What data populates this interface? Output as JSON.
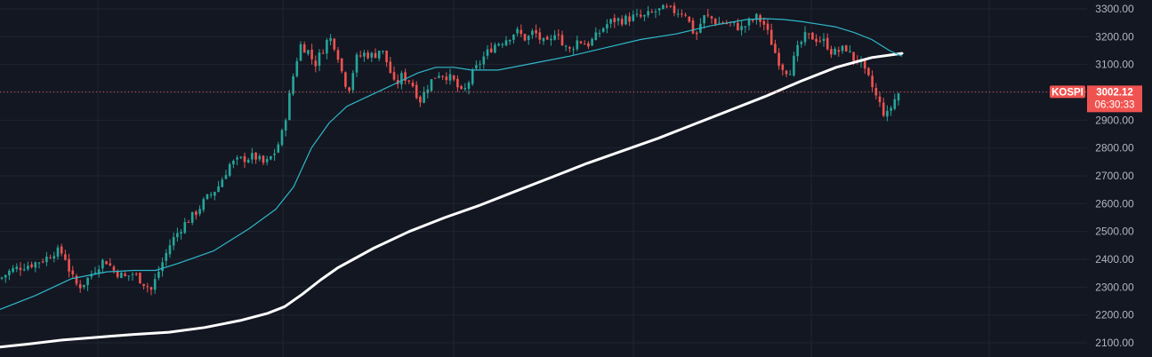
{
  "chart_data": {
    "type": "candlestick",
    "symbol": "KOSPI",
    "last_price": "3002.12",
    "countdown": "06:30:33",
    "ylim": [
      2070,
      3325
    ],
    "y_ticks": [
      "2100.00",
      "2200.00",
      "2300.00",
      "2400.00",
      "2500.00",
      "2600.00",
      "2700.00",
      "2800.00",
      "2900.00",
      "3000.00",
      "3100.00",
      "3200.00",
      "3300.00"
    ],
    "grid": true,
    "colors": {
      "background": "#131722",
      "up": "#26a69a",
      "down": "#ef5350",
      "ma_short": "#2fb8c8",
      "ma_long": "#ffffff",
      "last_price_tag": "#ef5350",
      "grid": "#1f2430",
      "tick_text": "#b2b5be"
    },
    "anchors": [
      [
        0,
        2330
      ],
      [
        12,
        2360
      ],
      [
        25,
        2375
      ],
      [
        38,
        2385
      ],
      [
        52,
        2405
      ],
      [
        62,
        2430
      ],
      [
        72,
        2420
      ],
      [
        80,
        2340
      ],
      [
        88,
        2300
      ],
      [
        96,
        2320
      ],
      [
        108,
        2370
      ],
      [
        118,
        2400
      ],
      [
        128,
        2360
      ],
      [
        140,
        2335
      ],
      [
        150,
        2350
      ],
      [
        160,
        2320
      ],
      [
        170,
        2290
      ],
      [
        180,
        2370
      ],
      [
        192,
        2460
      ],
      [
        205,
        2520
      ],
      [
        218,
        2560
      ],
      [
        230,
        2610
      ],
      [
        245,
        2660
      ],
      [
        258,
        2740
      ],
      [
        272,
        2760
      ],
      [
        286,
        2770
      ],
      [
        298,
        2740
      ],
      [
        310,
        2790
      ],
      [
        318,
        2860
      ],
      [
        325,
        2980
      ],
      [
        332,
        3100
      ],
      [
        338,
        3170
      ],
      [
        346,
        3150
      ],
      [
        354,
        3100
      ],
      [
        362,
        3150
      ],
      [
        370,
        3200
      ],
      [
        378,
        3160
      ],
      [
        386,
        3050
      ],
      [
        392,
        3010
      ],
      [
        400,
        3120
      ],
      [
        410,
        3140
      ],
      [
        420,
        3130
      ],
      [
        428,
        3160
      ],
      [
        436,
        3100
      ],
      [
        444,
        3020
      ],
      [
        452,
        3060
      ],
      [
        462,
        3040
      ],
      [
        472,
        2970
      ],
      [
        482,
        3030
      ],
      [
        492,
        3070
      ],
      [
        502,
        3060
      ],
      [
        510,
        3040
      ],
      [
        520,
        2990
      ],
      [
        530,
        3060
      ],
      [
        542,
        3120
      ],
      [
        555,
        3170
      ],
      [
        568,
        3190
      ],
      [
        580,
        3220
      ],
      [
        592,
        3190
      ],
      [
        600,
        3220
      ],
      [
        610,
        3180
      ],
      [
        618,
        3170
      ],
      [
        626,
        3240
      ],
      [
        632,
        3170
      ],
      [
        640,
        3150
      ],
      [
        650,
        3190
      ],
      [
        660,
        3170
      ],
      [
        670,
        3200
      ],
      [
        680,
        3240
      ],
      [
        690,
        3260
      ],
      [
        700,
        3260
      ],
      [
        712,
        3270
      ],
      [
        724,
        3270
      ],
      [
        736,
        3290
      ],
      [
        748,
        3300
      ],
      [
        760,
        3290
      ],
      [
        770,
        3290
      ],
      [
        776,
        3240
      ],
      [
        782,
        3200
      ],
      [
        790,
        3270
      ],
      [
        798,
        3270
      ],
      [
        806,
        3250
      ],
      [
        816,
        3250
      ],
      [
        826,
        3240
      ],
      [
        834,
        3230
      ],
      [
        842,
        3250
      ],
      [
        850,
        3270
      ],
      [
        858,
        3250
      ],
      [
        866,
        3190
      ],
      [
        874,
        3120
      ],
      [
        882,
        3080
      ],
      [
        888,
        3080
      ],
      [
        896,
        3150
      ],
      [
        904,
        3200
      ],
      [
        912,
        3200
      ],
      [
        920,
        3190
      ],
      [
        928,
        3180
      ],
      [
        936,
        3140
      ],
      [
        944,
        3150
      ],
      [
        952,
        3160
      ],
      [
        958,
        3120
      ],
      [
        966,
        3120
      ],
      [
        972,
        3070
      ],
      [
        978,
        3040
      ],
      [
        984,
        2990
      ],
      [
        990,
        2950
      ],
      [
        996,
        2910
      ],
      [
        1002,
        2950
      ],
      [
        1008,
        2990
      ],
      [
        1014,
        3010
      ]
    ],
    "ma_short": [
      [
        0,
        2220
      ],
      [
        40,
        2270
      ],
      [
        80,
        2330
      ],
      [
        120,
        2355
      ],
      [
        150,
        2360
      ],
      [
        175,
        2360
      ],
      [
        200,
        2385
      ],
      [
        240,
        2430
      ],
      [
        280,
        2510
      ],
      [
        310,
        2580
      ],
      [
        330,
        2660
      ],
      [
        350,
        2800
      ],
      [
        370,
        2890
      ],
      [
        390,
        2950
      ],
      [
        410,
        2980
      ],
      [
        430,
        3010
      ],
      [
        450,
        3040
      ],
      [
        470,
        3070
      ],
      [
        490,
        3090
      ],
      [
        510,
        3090
      ],
      [
        530,
        3080
      ],
      [
        560,
        3080
      ],
      [
        600,
        3105
      ],
      [
        640,
        3130
      ],
      [
        680,
        3160
      ],
      [
        720,
        3190
      ],
      [
        760,
        3210
      ],
      [
        800,
        3240
      ],
      [
        840,
        3262
      ],
      [
        860,
        3265
      ],
      [
        880,
        3262
      ],
      [
        900,
        3255
      ],
      [
        920,
        3245
      ],
      [
        940,
        3235
      ],
      [
        960,
        3215
      ],
      [
        980,
        3190
      ],
      [
        1000,
        3150
      ],
      [
        1014,
        3130
      ]
    ],
    "ma_long": [
      [
        0,
        2085
      ],
      [
        30,
        2095
      ],
      [
        70,
        2110
      ],
      [
        110,
        2120
      ],
      [
        150,
        2130
      ],
      [
        190,
        2138
      ],
      [
        230,
        2155
      ],
      [
        270,
        2180
      ],
      [
        300,
        2205
      ],
      [
        320,
        2230
      ],
      [
        340,
        2275
      ],
      [
        360,
        2325
      ],
      [
        380,
        2370
      ],
      [
        420,
        2440
      ],
      [
        460,
        2500
      ],
      [
        500,
        2550
      ],
      [
        540,
        2595
      ],
      [
        580,
        2645
      ],
      [
        620,
        2695
      ],
      [
        660,
        2745
      ],
      [
        700,
        2790
      ],
      [
        740,
        2835
      ],
      [
        780,
        2885
      ],
      [
        820,
        2935
      ],
      [
        860,
        2985
      ],
      [
        900,
        3040
      ],
      [
        940,
        3090
      ],
      [
        980,
        3125
      ],
      [
        1014,
        3140
      ]
    ]
  }
}
